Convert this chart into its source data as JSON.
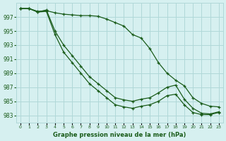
{
  "title": "Graphe pression niveau de la mer (hPa)",
  "background_color": "#d6f0f0",
  "grid_color": "#b0d8d8",
  "line_color": "#1a5c1a",
  "x_labels": [
    "0",
    "1",
    "2",
    "3",
    "4",
    "5",
    "6",
    "7",
    "8",
    "9",
    "10",
    "11",
    "12",
    "13",
    "14",
    "15",
    "16",
    "17",
    "18",
    "19",
    "20",
    "21",
    "22",
    "23"
  ],
  "yticks": [
    983,
    985,
    987,
    989,
    991,
    993,
    995,
    997
  ],
  "ylim": [
    982,
    999
  ],
  "xlim": [
    -0.5,
    23.5
  ],
  "line1": [
    998.2,
    998.2,
    997.8,
    997.9,
    997.6,
    997.4,
    997.3,
    997.2,
    997.2,
    997.1,
    996.7,
    996.2,
    995.7,
    994.5,
    994.0,
    992.5,
    990.5,
    989.0,
    988.0,
    987.2,
    985.5,
    984.7,
    984.3,
    984.2
  ],
  "line2": [
    998.2,
    998.2,
    997.7,
    998.0,
    995.0,
    993.0,
    991.5,
    990.0,
    988.5,
    987.5,
    986.5,
    985.5,
    985.2,
    985.0,
    985.3,
    985.5,
    986.2,
    987.0,
    987.3,
    985.3,
    984.0,
    983.3,
    983.2,
    983.5
  ],
  "line3": [
    998.2,
    998.2,
    997.7,
    997.8,
    994.5,
    992.0,
    990.5,
    989.0,
    987.5,
    986.5,
    985.5,
    984.5,
    984.2,
    984.0,
    984.3,
    984.5,
    985.0,
    985.8,
    986.0,
    984.5,
    983.4,
    983.1,
    983.1,
    983.4
  ]
}
